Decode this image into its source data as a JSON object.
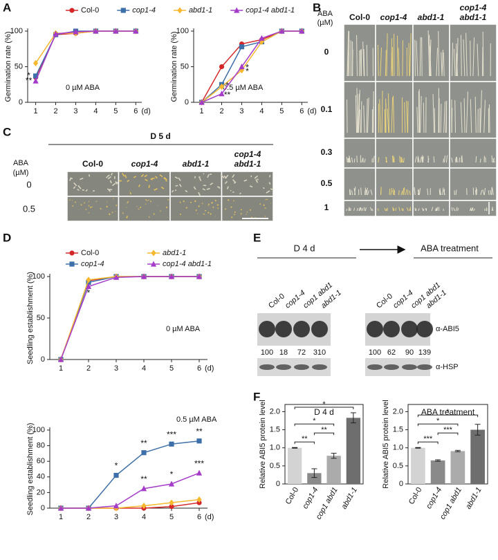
{
  "panel_labels": [
    "A",
    "B",
    "C",
    "D",
    "E",
    "F"
  ],
  "panel_b": {
    "axis_title": [
      "ABA",
      "(µM)"
    ],
    "columns": [
      "Col-0",
      "cop1-4",
      "abd1-1",
      "cop1-4",
      "abd1-1"
    ],
    "rows": [
      "0",
      "0.1",
      "0.3",
      "0.5",
      "1"
    ]
  },
  "panel_c": {
    "title": "D 5 d",
    "axis_title": [
      "ABA",
      "(µM)"
    ],
    "columns": [
      "Col-0",
      "cop1-4",
      "abd1-1",
      "cop1-4",
      "abd1-1"
    ],
    "rows": [
      "0",
      "0.5"
    ]
  },
  "panel_e": {
    "stage_1": "D 4 d",
    "stage_2": "ABA treatment",
    "lanes": [
      "Col-0",
      "cop1-4",
      "cop1 abd1",
      "abd1-1"
    ],
    "antibody_1": "α-ABI5",
    "antibody_2": "α-HSP",
    "quant_1": [
      "100",
      "18",
      "72",
      "310"
    ],
    "quant_2": [
      "100",
      "62",
      "90",
      "139"
    ]
  },
  "chart_data": [
    {
      "type": "line",
      "y_label": "Germination rate (%)",
      "note": "0 µM ABA",
      "x_unit": "(d)",
      "legend": "top-row",
      "x": [
        1,
        2,
        3,
        4,
        5,
        6
      ],
      "xlim": [
        0.6,
        6.3
      ],
      "xticks": [
        1,
        2,
        3,
        4,
        5,
        6
      ],
      "ylim": [
        0,
        100
      ],
      "yticks": [
        0,
        50,
        100
      ],
      "series": [
        {
          "name": "Col-0",
          "color": "#d62728",
          "marker": "circle",
          "values": [
            35,
            95,
            97,
            100,
            100,
            100
          ]
        },
        {
          "name": "cop1-4",
          "color": "#3d6fa8",
          "marker": "square",
          "values": [
            37,
            95,
            100,
            100,
            100,
            100
          ],
          "annotations": [
            "*",
            null,
            null,
            null,
            null,
            null
          ]
        },
        {
          "name": "abd1-1",
          "color": "#f5b82e",
          "marker": "diamond",
          "values": [
            55,
            97,
            97,
            100,
            100,
            100
          ]
        },
        {
          "name": "cop1-4 abd1-1",
          "color": "#a43cc8",
          "marker": "triangle",
          "values": [
            30,
            96,
            99,
            100,
            100,
            100
          ],
          "annotations": [
            "**",
            null,
            null,
            null,
            null,
            null
          ]
        }
      ]
    },
    {
      "type": "line",
      "y_label": "Germination rate (%)",
      "note": "0.5 µM ABA",
      "x_unit": "(d)",
      "x": [
        1,
        2,
        3,
        4,
        5,
        6
      ],
      "xlim": [
        0.6,
        6.3
      ],
      "xticks": [
        1,
        2,
        3,
        4,
        5,
        6
      ],
      "ylim": [
        0,
        100
      ],
      "yticks": [
        0,
        50,
        100
      ],
      "series": [
        {
          "color": "#d62728",
          "marker": "circle",
          "values": [
            0,
            50,
            82,
            88,
            100,
            100
          ]
        },
        {
          "color": "#3d6fa8",
          "marker": "square",
          "values": [
            0,
            25,
            78,
            85,
            100,
            100
          ],
          "annotations": [
            null,
            "*",
            null,
            null,
            null,
            null
          ]
        },
        {
          "color": "#f5b82e",
          "marker": "diamond",
          "values": [
            0,
            22,
            45,
            85,
            100,
            100
          ],
          "annotations": [
            null,
            null,
            "*",
            null,
            null,
            null
          ]
        },
        {
          "color": "#a43cc8",
          "marker": "triangle",
          "values": [
            0,
            12,
            50,
            90,
            100,
            100
          ],
          "annotations": [
            null,
            "**",
            "*",
            null,
            null,
            null
          ]
        }
      ]
    },
    {
      "type": "line",
      "y_label": "Seedling establishment (%)",
      "note": "0 µM ABA",
      "x_unit": "(d)",
      "legend": "two-columns",
      "x": [
        1,
        2,
        3,
        4,
        5,
        6
      ],
      "xlim": [
        0.6,
        6.3
      ],
      "xticks": [
        1,
        2,
        3,
        4,
        5,
        6
      ],
      "ylim": [
        0,
        100
      ],
      "yticks": [
        0,
        50,
        100
      ],
      "series": [
        {
          "name": "Col-0",
          "color": "#d62728",
          "marker": "circle",
          "values": [
            0,
            95,
            100,
            100,
            100,
            100
          ]
        },
        {
          "name": "cop1-4",
          "color": "#3d6fa8",
          "marker": "square",
          "values": [
            0,
            93,
            100,
            100,
            100,
            100
          ]
        },
        {
          "name": "abd1-1",
          "color": "#f5b82e",
          "marker": "diamond",
          "values": [
            0,
            96,
            100,
            100,
            100,
            100
          ]
        },
        {
          "name": "cop1-4 abd1-1",
          "color": "#a43cc8",
          "marker": "triangle",
          "values": [
            0,
            88,
            99,
            100,
            100,
            100
          ],
          "annotations": [
            null,
            "*",
            null,
            null,
            null,
            null
          ]
        }
      ]
    },
    {
      "type": "line",
      "y_label": "Seedling establishment (%)",
      "note": "0.5 µM ABA",
      "x_unit": "(d)",
      "x": [
        1,
        2,
        3,
        4,
        5,
        6
      ],
      "xlim": [
        0.6,
        6.3
      ],
      "xticks": [
        1,
        2,
        3,
        4,
        5,
        6
      ],
      "ylim": [
        0,
        100
      ],
      "yticks": [
        0,
        20,
        40,
        60,
        80,
        100
      ],
      "series": [
        {
          "color": "#d62728",
          "marker": "circle",
          "values": [
            0,
            0,
            0,
            0,
            2,
            7
          ]
        },
        {
          "color": "#3d6fa8",
          "marker": "square",
          "values": [
            0,
            0,
            42,
            71,
            82,
            86
          ],
          "annotations": [
            null,
            null,
            "*",
            "**",
            "***",
            "**"
          ]
        },
        {
          "color": "#f5b82e",
          "marker": "diamond",
          "values": [
            0,
            0,
            0,
            3,
            7,
            11
          ]
        },
        {
          "color": "#a43cc8",
          "marker": "triangle",
          "values": [
            0,
            0,
            3,
            25,
            31,
            45
          ],
          "annotations": [
            null,
            null,
            null,
            "**",
            "*",
            "***"
          ]
        }
      ]
    },
    {
      "type": "bar",
      "title": "D 4 d",
      "y_label": "Relative ABI5 protein level",
      "frame": true,
      "categories": [
        "Col-0",
        "cop1-4",
        "cop1 abd1",
        "abd1-1"
      ],
      "values": [
        1.0,
        0.3,
        0.78,
        1.83
      ],
      "errors": [
        0.01,
        0.12,
        0.07,
        0.14
      ],
      "colors": [
        "#d3d3d3",
        "#8a8a8a",
        "#ababab",
        "#6e6e6e"
      ],
      "ylim": [
        0,
        2.2
      ],
      "yticks": [
        0,
        0.5,
        {
          "value": 1,
          "label": "1.0"
        },
        1.5,
        {
          "value": 2,
          "label": "2.0"
        }
      ],
      "brackets": [
        {
          "from": "Col-0",
          "to": "cop1-4",
          "label": "**"
        },
        {
          "from": "cop1-4",
          "to": "cop1 abd1",
          "label": "**"
        },
        {
          "from": "Col-0",
          "to": "cop1 abd1",
          "label": "*"
        },
        {
          "from": "Col-0",
          "to": "abd1-1",
          "label": "*"
        }
      ]
    },
    {
      "type": "bar",
      "title": "ABA treatment",
      "y_label": "Relative ABI5 protein level",
      "frame": true,
      "categories": [
        "Col-0",
        "cop1-4",
        "cop1 abd1",
        "abd1-1"
      ],
      "values": [
        1.0,
        0.65,
        0.91,
        1.5
      ],
      "errors": [
        0.01,
        0.02,
        0.02,
        0.15
      ],
      "colors": [
        "#d3d3d3",
        "#8a8a8a",
        "#ababab",
        "#6e6e6e"
      ],
      "ylim": [
        0,
        2.2
      ],
      "yticks": [
        0,
        0.5,
        {
          "value": 1,
          "label": "1.0"
        },
        1.5,
        {
          "value": 2,
          "label": "2.0"
        }
      ],
      "brackets": [
        {
          "from": "Col-0",
          "to": "cop1-4",
          "label": "***"
        },
        {
          "from": "cop1-4",
          "to": "cop1 abd1",
          "label": "***"
        },
        {
          "from": "Col-0",
          "to": "cop1 abd1",
          "label": "*"
        },
        {
          "from": "Col-0",
          "to": "abd1-1",
          "label": "*"
        }
      ]
    }
  ]
}
